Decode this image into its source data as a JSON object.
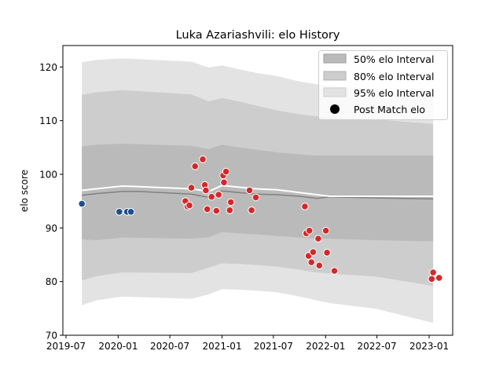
{
  "chart_data": {
    "type": "line",
    "title": "Luka Azariashvili: elo History",
    "xlabel": "",
    "ylabel": "elo score",
    "xlim": [
      "2019-06-20",
      "2023-03-25"
    ],
    "ylim": [
      70,
      124
    ],
    "x_ticks": [
      "2019-07",
      "2020-01",
      "2020-07",
      "2021-01",
      "2021-07",
      "2022-01",
      "2022-07",
      "2023-01"
    ],
    "y_ticks": [
      70,
      80,
      90,
      100,
      110,
      120
    ],
    "grid": false,
    "legend": {
      "placement": "top-right",
      "entries": [
        "50% elo Interval",
        "80% elo Interval",
        "95% elo Interval",
        "Post Match elo"
      ]
    },
    "colors": {
      "band_95": "#e3e3e3",
      "band_80": "#cdcdcd",
      "band_50": "#bababa",
      "mean_line": "#808080",
      "median_line": "#ffffff",
      "point_red": "#d62728",
      "point_blue": "#1f4e8c",
      "legend_marker": "#000000"
    },
    "bands": {
      "x": [
        "2019-08-26",
        "2019-10-15",
        "2020-01-15",
        "2020-09-15",
        "2020-11-15",
        "2021-01-01",
        "2021-03-01",
        "2021-05-01",
        "2021-07-15",
        "2021-10-01",
        "2021-12-01",
        "2022-01-15",
        "2022-07-01",
        "2023-01-15"
      ],
      "p95_upper": [
        120.9,
        121.3,
        121.6,
        121.0,
        119.9,
        120.3,
        119.6,
        118.9,
        118.3,
        117.3,
        116.8,
        116.5,
        115.9,
        115.0
      ],
      "p80_upper": [
        114.8,
        115.3,
        115.7,
        114.9,
        113.6,
        114.2,
        113.6,
        112.8,
        111.9,
        111.2,
        110.8,
        110.6,
        110.2,
        109.4
      ],
      "p50_upper": [
        105.2,
        105.5,
        105.7,
        105.3,
        104.7,
        105.5,
        105.0,
        104.6,
        104.1,
        103.7,
        103.5,
        103.5,
        103.5,
        103.5
      ],
      "p50_lower": [
        87.9,
        87.7,
        88.2,
        88.0,
        88.3,
        89.2,
        89.0,
        88.8,
        88.5,
        88.2,
        88.0,
        88.0,
        87.7,
        87.5
      ],
      "p80_lower": [
        80.2,
        81.0,
        81.7,
        81.6,
        82.6,
        83.4,
        83.3,
        83.1,
        82.8,
        82.2,
        81.7,
        81.5,
        80.9,
        79.2
      ],
      "p95_lower": [
        75.6,
        76.5,
        77.2,
        76.8,
        77.6,
        78.6,
        78.5,
        78.3,
        78.0,
        77.2,
        76.5,
        76.0,
        74.9,
        72.3
      ]
    },
    "mean_line": {
      "x": [
        "2019-08-26",
        "2019-10-15",
        "2020-01-15",
        "2020-03-15",
        "2020-09-15",
        "2020-11-15",
        "2021-01-01",
        "2021-03-01",
        "2021-05-01",
        "2021-07-15",
        "2021-10-01",
        "2021-12-01",
        "2022-01-15",
        "2022-07-01",
        "2023-01-15"
      ],
      "values": [
        96.1,
        96.4,
        96.8,
        96.8,
        96.3,
        95.7,
        96.9,
        96.6,
        96.3,
        96.2,
        95.9,
        95.5,
        95.8,
        95.6,
        95.4
      ]
    },
    "median_line": {
      "x": [
        "2019-08-26",
        "2019-10-15",
        "2020-01-15",
        "2020-03-15",
        "2020-09-15",
        "2020-11-15",
        "2021-01-01",
        "2021-03-01",
        "2021-05-01",
        "2021-07-15",
        "2021-10-01",
        "2021-12-01",
        "2022-01-15",
        "2022-07-01",
        "2023-01-15"
      ],
      "values": [
        97.0,
        97.3,
        97.8,
        97.7,
        97.3,
        96.8,
        97.9,
        97.6,
        97.3,
        97.1,
        96.6,
        96.2,
        95.9,
        95.9,
        95.9
      ]
    },
    "series": [
      {
        "name": "Post Match elo",
        "points": [
          {
            "x": "2019-08-26",
            "y": 94.5,
            "c": "blue"
          },
          {
            "x": "2020-01-05",
            "y": 93.0,
            "c": "blue"
          },
          {
            "x": "2020-02-01",
            "y": 93.0,
            "c": "blue"
          },
          {
            "x": "2020-02-15",
            "y": 93.0,
            "c": "blue"
          },
          {
            "x": "2020-08-25",
            "y": 95.0,
            "c": "red"
          },
          {
            "x": "2020-09-01",
            "y": 94.0,
            "c": "red"
          },
          {
            "x": "2020-09-08",
            "y": 94.2,
            "c": "red"
          },
          {
            "x": "2020-09-15",
            "y": 97.5,
            "c": "red"
          },
          {
            "x": "2020-09-28",
            "y": 101.5,
            "c": "red"
          },
          {
            "x": "2020-10-25",
            "y": 102.8,
            "c": "red"
          },
          {
            "x": "2020-11-01",
            "y": 98.0,
            "c": "red"
          },
          {
            "x": "2020-11-05",
            "y": 97.0,
            "c": "red"
          },
          {
            "x": "2020-11-10",
            "y": 93.5,
            "c": "red"
          },
          {
            "x": "2020-11-25",
            "y": 95.8,
            "c": "red"
          },
          {
            "x": "2020-12-12",
            "y": 93.2,
            "c": "red"
          },
          {
            "x": "2020-12-20",
            "y": 96.2,
            "c": "red"
          },
          {
            "x": "2021-01-05",
            "y": 99.8,
            "c": "red"
          },
          {
            "x": "2021-01-08",
            "y": 98.5,
            "c": "red"
          },
          {
            "x": "2021-01-15",
            "y": 100.5,
            "c": "red"
          },
          {
            "x": "2021-01-28",
            "y": 93.3,
            "c": "red"
          },
          {
            "x": "2021-02-01",
            "y": 94.8,
            "c": "red"
          },
          {
            "x": "2021-04-08",
            "y": 97.0,
            "c": "red"
          },
          {
            "x": "2021-04-15",
            "y": 93.3,
            "c": "red"
          },
          {
            "x": "2021-04-30",
            "y": 95.7,
            "c": "red"
          },
          {
            "x": "2021-10-20",
            "y": 94.0,
            "c": "red"
          },
          {
            "x": "2021-10-25",
            "y": 89.0,
            "c": "red"
          },
          {
            "x": "2021-11-02",
            "y": 84.8,
            "c": "red"
          },
          {
            "x": "2021-11-05",
            "y": 89.5,
            "c": "red"
          },
          {
            "x": "2021-11-12",
            "y": 83.6,
            "c": "red"
          },
          {
            "x": "2021-11-18",
            "y": 85.5,
            "c": "red"
          },
          {
            "x": "2021-12-06",
            "y": 88.0,
            "c": "red"
          },
          {
            "x": "2021-12-10",
            "y": 83.0,
            "c": "red"
          },
          {
            "x": "2022-01-02",
            "y": 89.5,
            "c": "red"
          },
          {
            "x": "2022-01-06",
            "y": 85.4,
            "c": "red"
          },
          {
            "x": "2022-02-01",
            "y": 82.0,
            "c": "red"
          },
          {
            "x": "2023-01-10",
            "y": 80.5,
            "c": "red"
          },
          {
            "x": "2023-01-15",
            "y": 81.7,
            "c": "red"
          },
          {
            "x": "2023-02-05",
            "y": 80.7,
            "c": "red"
          }
        ]
      }
    ]
  }
}
